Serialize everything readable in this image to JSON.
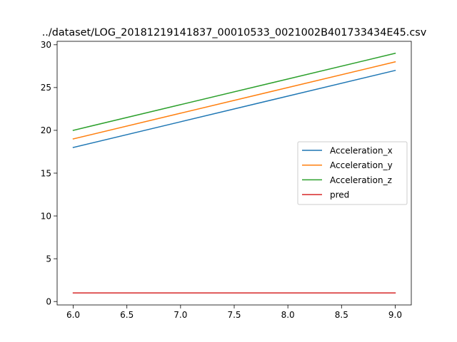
{
  "chart_data": {
    "type": "line",
    "title": "../dataset/LOG_20181219141837_00010533_0021002B401733434E45.csv",
    "xlabel": "",
    "ylabel": "",
    "x": [
      6.0,
      7.0,
      8.0,
      9.0
    ],
    "xlim": [
      5.85,
      9.15
    ],
    "ylim": [
      -0.4,
      30.4
    ],
    "x_ticks": [
      6.0,
      6.5,
      7.0,
      7.5,
      8.0,
      8.5,
      9.0
    ],
    "x_tick_labels": [
      "6.0",
      "6.5",
      "7.0",
      "7.5",
      "8.0",
      "8.5",
      "9.0"
    ],
    "y_ticks": [
      0,
      5,
      10,
      15,
      20,
      25,
      30
    ],
    "y_tick_labels": [
      "0",
      "5",
      "10",
      "15",
      "20",
      "25",
      "30"
    ],
    "grid": false,
    "legend_position": "center-right",
    "series": [
      {
        "name": "Acceleration_x",
        "color": "#1f77b4",
        "values": [
          18,
          21,
          24,
          27
        ]
      },
      {
        "name": "Acceleration_y",
        "color": "#ff7f0e",
        "values": [
          19,
          22,
          25,
          28
        ]
      },
      {
        "name": "Acceleration_z",
        "color": "#2ca02c",
        "values": [
          20,
          23,
          26,
          29
        ]
      },
      {
        "name": "pred",
        "color": "#d62728",
        "values": [
          1,
          1,
          1,
          1
        ]
      }
    ]
  }
}
